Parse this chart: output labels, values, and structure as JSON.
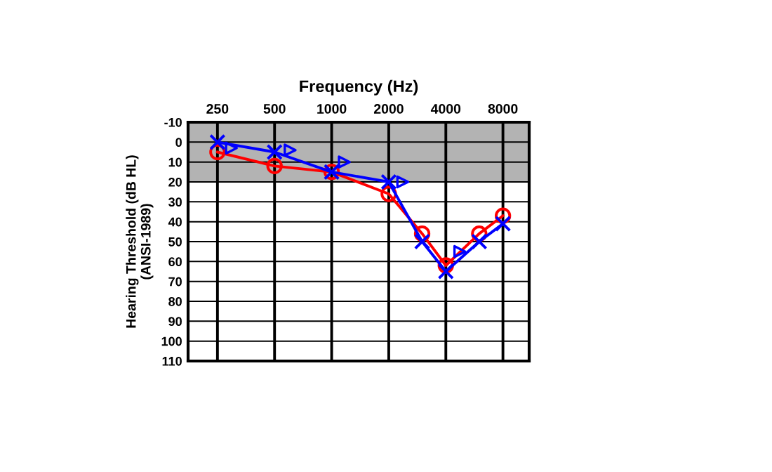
{
  "chart_data": {
    "type": "line",
    "xlabel": "Frequency (Hz)",
    "ylabel": "Hearing Threshold (dB HL)\n(ANSI-1989)",
    "log": "x",
    "xlim": [
      175,
      11000
    ],
    "xticks": [
      250,
      500,
      1000,
      2000,
      4000,
      8000
    ],
    "ylim": [
      110,
      -10
    ],
    "yticks": [
      -10,
      0,
      10,
      20,
      30,
      40,
      50,
      60,
      70,
      80,
      90,
      100,
      110
    ],
    "grid": true,
    "legend": false,
    "bands": [
      {
        "axis": "y",
        "from": -10,
        "to": 20,
        "label": null,
        "color": "#b3b3b3"
      }
    ],
    "series": [
      {
        "color": "#ff0000",
        "marker": "circle",
        "line_style": "solid",
        "x": [
          250,
          500,
          1000,
          2000,
          3000,
          4000,
          6000,
          8000
        ],
        "values": [
          5,
          12,
          15,
          26,
          46,
          62,
          46,
          37
        ]
      },
      {
        "color": "#0000ff",
        "marker": "cross",
        "line_style": "solid",
        "x": [
          250,
          500,
          1000,
          2000,
          3000,
          4000,
          6000,
          8000
        ],
        "values": [
          0,
          5,
          15,
          20,
          50,
          65,
          50,
          41
        ]
      },
      {
        "type": "scatter",
        "color": "#0000ff",
        "marker": "triangle",
        "x": [
          296,
          604,
          1166,
          2370,
          4740
        ],
        "values": [
          3,
          4,
          10,
          20,
          55
        ]
      }
    ]
  }
}
